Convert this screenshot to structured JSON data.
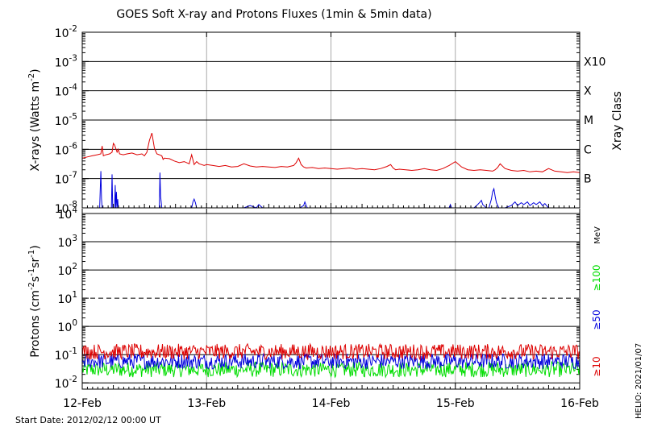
{
  "chart_data": [
    {
      "type": "line",
      "title": "GOES Soft X-ray and Protons Fluxes   (1min & 5min data)",
      "ylabel_base": "X-rays (Watts m",
      "ylabel_exp": "-2",
      "ylabel_end": ")",
      "yscale": "log",
      "ylim": [
        1e-08,
        0.01
      ],
      "y_ticks": [
        {
          "value": 1e-08,
          "base": "10",
          "exp": "-8"
        },
        {
          "value": 1e-07,
          "base": "10",
          "exp": "-7"
        },
        {
          "value": 1e-06,
          "base": "10",
          "exp": "-6"
        },
        {
          "value": 1e-05,
          "base": "10",
          "exp": "-5"
        },
        {
          "value": 0.0001,
          "base": "10",
          "exp": "-4"
        },
        {
          "value": 0.001,
          "base": "10",
          "exp": "-3"
        },
        {
          "value": 0.01,
          "base": "10",
          "exp": "-2"
        }
      ],
      "right_axis_label": "Xray Class",
      "class_labels": [
        {
          "label": "B",
          "value": 1e-07
        },
        {
          "label": "C",
          "value": 1e-06
        },
        {
          "label": "M",
          "value": 1e-05
        },
        {
          "label": "X",
          "value": 0.0001
        },
        {
          "label": "X10",
          "value": 0.001
        }
      ],
      "series": [
        {
          "color": "#dd0000",
          "x": [
            0.0,
            0.04,
            0.08,
            0.12,
            0.15,
            0.16,
            0.17,
            0.19,
            0.22,
            0.24,
            0.25,
            0.26,
            0.28,
            0.29,
            0.3,
            0.33,
            0.36,
            0.4,
            0.44,
            0.48,
            0.5,
            0.52,
            0.54,
            0.56,
            0.58,
            0.6,
            0.62,
            0.64,
            0.65,
            0.66,
            0.7,
            0.74,
            0.78,
            0.82,
            0.86,
            0.88,
            0.9,
            0.92,
            0.94,
            0.96,
            0.98,
            1.0,
            1.05,
            1.1,
            1.15,
            1.2,
            1.25,
            1.3,
            1.35,
            1.4,
            1.45,
            1.5,
            1.55,
            1.6,
            1.65,
            1.7,
            1.72,
            1.74,
            1.76,
            1.78,
            1.8,
            1.85,
            1.9,
            1.95,
            2.0,
            2.05,
            2.1,
            2.15,
            2.2,
            2.25,
            2.3,
            2.35,
            2.4,
            2.45,
            2.48,
            2.5,
            2.52,
            2.55,
            2.6,
            2.65,
            2.7,
            2.75,
            2.8,
            2.85,
            2.9,
            2.95,
            3.0,
            3.05,
            3.1,
            3.15,
            3.2,
            3.25,
            3.3,
            3.32,
            3.34,
            3.36,
            3.4,
            3.45,
            3.5,
            3.55,
            3.6,
            3.65,
            3.7,
            3.75,
            3.8,
            3.85,
            3.9,
            3.95,
            4.0
          ],
          "y": [
            5e-07,
            5.5e-07,
            6e-07,
            6.5e-07,
            7e-07,
            1.3e-06,
            6e-07,
            6.5e-07,
            7e-07,
            8e-07,
            1.6e-06,
            1.4e-06,
            8e-07,
            1e-06,
            7e-07,
            6.5e-07,
            7e-07,
            7.5e-07,
            6.5e-07,
            7e-07,
            6e-07,
            8e-07,
            2e-06,
            3.6e-06,
            1.1e-06,
            7e-07,
            6.5e-07,
            6e-07,
            4.5e-07,
            5e-07,
            4.8e-07,
            4e-07,
            3.5e-07,
            3.8e-07,
            3.2e-07,
            6.5e-07,
            3e-07,
            3.8e-07,
            3.2e-07,
            3e-07,
            2.8e-07,
            3e-07,
            2.8e-07,
            2.6e-07,
            2.8e-07,
            2.5e-07,
            2.6e-07,
            3.2e-07,
            2.7e-07,
            2.5e-07,
            2.6e-07,
            2.5e-07,
            2.4e-07,
            2.6e-07,
            2.5e-07,
            2.8e-07,
            3.5e-07,
            5e-07,
            3e-07,
            2.5e-07,
            2.3e-07,
            2.4e-07,
            2.2e-07,
            2.3e-07,
            2.2e-07,
            2.1e-07,
            2.2e-07,
            2.3e-07,
            2.1e-07,
            2.2e-07,
            2.1e-07,
            2e-07,
            2.2e-07,
            2.6e-07,
            3e-07,
            2.3e-07,
            2e-07,
            2.1e-07,
            2e-07,
            1.9e-07,
            2e-07,
            2.2e-07,
            2e-07,
            1.9e-07,
            2.2e-07,
            2.8e-07,
            3.8e-07,
            2.5e-07,
            2e-07,
            1.9e-07,
            2e-07,
            1.9e-07,
            1.8e-07,
            2e-07,
            2.4e-07,
            3.2e-07,
            2.2e-07,
            1.9e-07,
            1.8e-07,
            1.9e-07,
            1.7e-07,
            1.8e-07,
            1.7e-07,
            2.2e-07,
            1.8e-07,
            1.7e-07,
            1.6e-07,
            1.7e-07,
            1.6e-07
          ]
        },
        {
          "color": "#0000dd",
          "x": [
            0.0,
            0.14,
            0.15,
            0.155,
            0.16,
            0.2,
            0.235,
            0.24,
            0.245,
            0.26,
            0.265,
            0.27,
            0.275,
            0.28,
            0.285,
            0.29,
            0.3,
            0.4,
            0.6,
            0.62,
            0.625,
            0.63,
            0.64,
            0.7,
            0.88,
            0.89,
            0.9,
            0.91,
            0.92,
            1.0,
            1.1,
            1.3,
            1.35,
            1.4,
            1.42,
            1.45,
            1.6,
            1.65,
            1.75,
            1.78,
            1.79,
            1.8,
            1.81,
            1.82,
            2.0,
            2.5,
            2.95,
            2.96,
            2.97,
            3.0,
            3.15,
            3.18,
            3.2,
            3.21,
            3.22,
            3.25,
            3.27,
            3.29,
            3.3,
            3.31,
            3.32,
            3.33,
            3.35,
            3.4,
            3.45,
            3.48,
            3.5,
            3.53,
            3.55,
            3.58,
            3.6,
            3.63,
            3.65,
            3.68,
            3.7,
            3.72,
            3.75,
            3.8,
            4.0
          ],
          "y": [
            1e-08,
            1e-08,
            1.8e-07,
            2e-08,
            1e-08,
            1e-08,
            1e-08,
            1.4e-07,
            1e-08,
            1e-08,
            6e-08,
            1e-08,
            3.5e-08,
            1e-08,
            2e-08,
            1e-08,
            1e-08,
            1e-08,
            1e-08,
            1e-08,
            1.6e-07,
            2.5e-08,
            1e-08,
            1e-08,
            1e-08,
            1.6e-08,
            2e-08,
            1.5e-08,
            1e-08,
            1e-08,
            1e-08,
            1e-08,
            1.2e-08,
            1e-08,
            1.3e-08,
            1e-08,
            1e-08,
            1e-08,
            1e-08,
            1.2e-08,
            1.6e-08,
            1.2e-08,
            1e-08,
            1e-08,
            1e-08,
            1e-08,
            1e-08,
            1.3e-08,
            1e-08,
            1e-08,
            1e-08,
            1.3e-08,
            1.6e-08,
            1.8e-08,
            1.3e-08,
            1e-08,
            1e-08,
            2e-08,
            3.5e-08,
            4.5e-08,
            2.5e-08,
            1.5e-08,
            1e-08,
            1e-08,
            1.2e-08,
            1.6e-08,
            1.2e-08,
            1.5e-08,
            1.3e-08,
            1.6e-08,
            1.2e-08,
            1.5e-08,
            1.3e-08,
            1.6e-08,
            1.2e-08,
            1.4e-08,
            1e-08,
            1e-08,
            1e-08
          ]
        }
      ]
    },
    {
      "type": "line",
      "ylabel_base": "Protons (cm",
      "ylabel_exp1": "-2",
      "ylabel_mid": "s",
      "ylabel_exp2": "-1",
      "ylabel_mid2": "sr",
      "ylabel_exp3": "-1",
      "ylabel_end": ")",
      "yscale": "log",
      "ylim": [
        0.006,
        10000
      ],
      "y_ticks": [
        {
          "value": 0.01,
          "base": "10",
          "exp": "-2"
        },
        {
          "value": 0.1,
          "base": "10",
          "exp": "-1"
        },
        {
          "value": 1,
          "base": "10",
          "exp": "0"
        },
        {
          "value": 10,
          "base": "10",
          "exp": "1"
        },
        {
          "value": 100,
          "base": "10",
          "exp": "2"
        },
        {
          "value": 1000,
          "base": "10",
          "exp": "3"
        },
        {
          "value": 10000,
          "base": "10",
          "exp": "4"
        }
      ],
      "threshold_value": 10,
      "units_label": "MeV",
      "series": [
        {
          "name": "≥10",
          "color": "#dd0000",
          "level": 0.12,
          "spread": 0.55
        },
        {
          "name": "≥50",
          "color": "#0000dd",
          "level": 0.055,
          "spread": 0.55
        },
        {
          "name": "≥100",
          "color": "#00dd00",
          "level": 0.028,
          "spread": 0.55
        }
      ]
    }
  ],
  "x_axis": {
    "categories": [
      "12-Feb",
      "13-Feb",
      "14-Feb",
      "15-Feb",
      "16-Feb"
    ]
  },
  "footer": {
    "start_date": "Start Date: 2012/02/12 00:00 UT",
    "credit": "HELIO: 2021/01/07"
  }
}
